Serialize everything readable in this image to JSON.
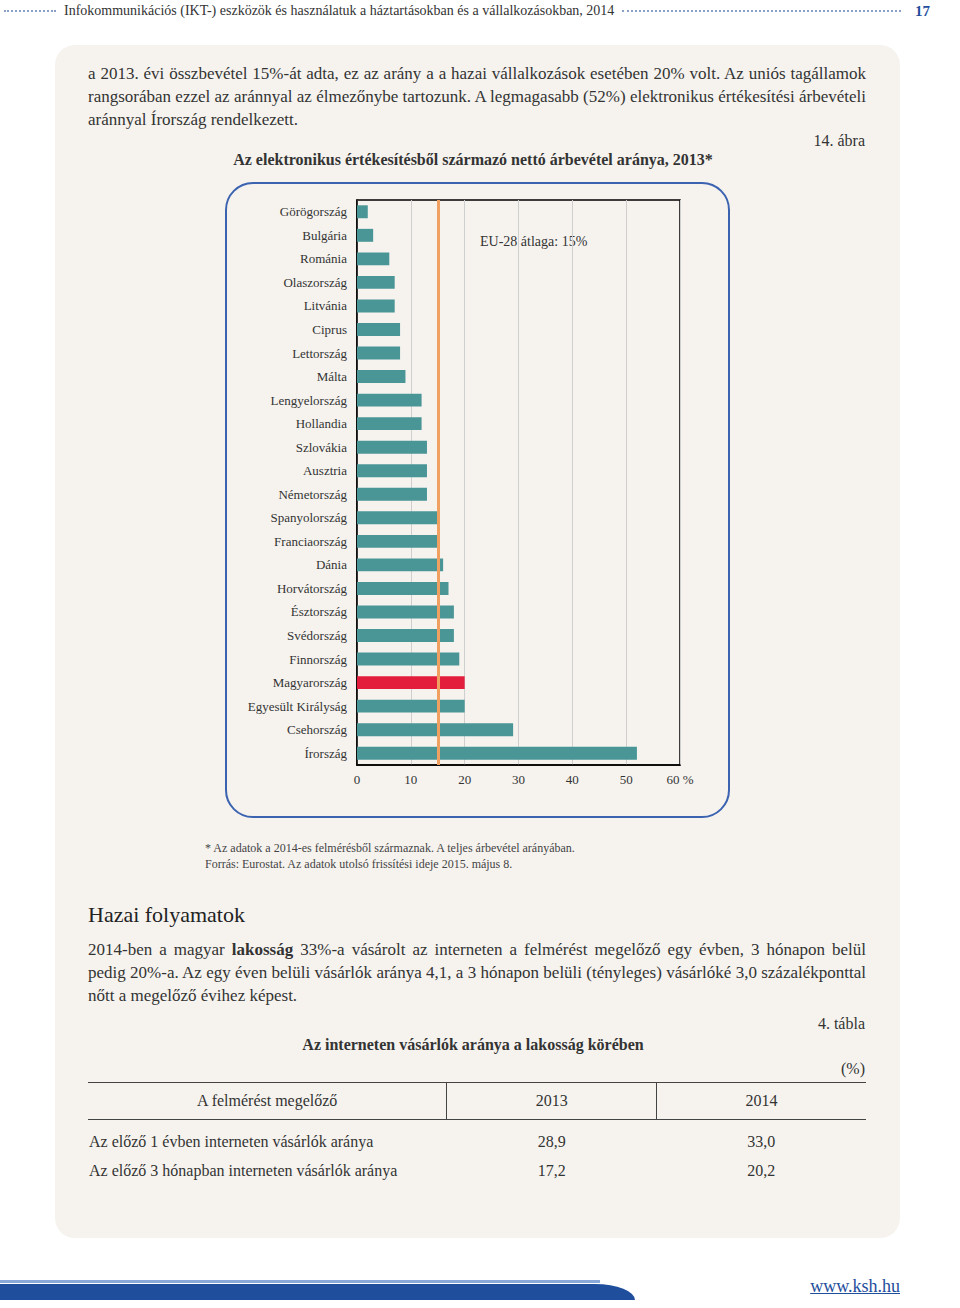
{
  "header": {
    "title": "Infokommunikációs (IKT-) eszközök és használatuk a háztartásokban és a vállalkozásokban, 2014",
    "page": "17"
  },
  "intro": "a 2013. évi összbevétel 15%-át adta, ez az arány a a hazai vállalkozások esetében 20% volt. Az uniós tagállamok rangsorában ezzel az aránnyal az élmezőnybe tartozunk. A legmagasabb (52%) elektronikus értékesítési árbevételi aránnyal Írország rendelkezett.",
  "figure": {
    "label": "14. ábra",
    "notes": [
      "* Az adatok a 2014-es felmérésből származnak. A teljes árbevétel arányában.",
      "Forrás: Eurostat. Az adatok utolsó frissítési ideje 2015. május 8."
    ]
  },
  "chart_data": {
    "type": "bar",
    "title": "Az elektronikus értékesítésből származó nettó árbevétel aránya, 2013*",
    "orientation": "horizontal",
    "categories": [
      "Görögország",
      "Bulgária",
      "Románia",
      "Olaszország",
      "Litvánia",
      "Ciprus",
      "Lettország",
      "Málta",
      "Lengyelország",
      "Hollandia",
      "Szlovákia",
      "Ausztria",
      "Németország",
      "Spanyolország",
      "Franciaország",
      "Dánia",
      "Horvátország",
      "Észtország",
      "Svédország",
      "Finnország",
      "Magyarország",
      "Egyesült Királyság",
      "Csehország",
      "Írország"
    ],
    "values": [
      2,
      3,
      6,
      7,
      7,
      8,
      8,
      9,
      12,
      12,
      13,
      13,
      13,
      15,
      15,
      16,
      17,
      18,
      18,
      19,
      20,
      20,
      29,
      52
    ],
    "colors": [
      "#4a9697",
      "#4a9697",
      "#4a9697",
      "#4a9697",
      "#4a9697",
      "#4a9697",
      "#4a9697",
      "#4a9697",
      "#4a9697",
      "#4a9697",
      "#4a9697",
      "#4a9697",
      "#4a9697",
      "#4a9697",
      "#4a9697",
      "#4a9697",
      "#4a9697",
      "#4a9697",
      "#4a9697",
      "#4a9697",
      "#e31e3c",
      "#4a9697",
      "#4a9697",
      "#4a9697"
    ],
    "xlim": [
      0,
      60
    ],
    "xticks": [
      0,
      10,
      20,
      30,
      40,
      50,
      {
        "value": 60,
        "label": "60 %"
      }
    ],
    "grid": true,
    "reference_line": {
      "value": 15,
      "label": "EU-28 átlaga: 15%",
      "color": "#f0a060"
    }
  },
  "section": {
    "heading": "Hazai folyamatok",
    "paragraph": [
      {
        "text": "2014-ben a magyar ",
        "bold": false
      },
      {
        "text": "lakosság",
        "bold": true
      },
      {
        "text": " 33%-a vásárolt az interneten a felmérést megelőző egy évben, 3 hónapon belül pedig 20%-a. Az egy éven belüli vásárlók aránya 4,1, a 3 hónapon belüli (tényleges) vásárlóké 3,0 százalékponttal nőtt a megelőző évihez képest.",
        "bold": false
      }
    ]
  },
  "table": {
    "label": "4. tábla",
    "title": "Az interneten vásárlók aránya a lakosság körében",
    "unit": "(%)",
    "header": [
      "A felmérést megelőző",
      "2013",
      "2014"
    ],
    "rows": [
      [
        "Az előző 1 évben interneten vásárlók aránya",
        "28,9",
        "33,0"
      ],
      [
        "Az előző 3 hónapban interneten vásárlók aránya",
        "17,2",
        "20,2"
      ]
    ]
  },
  "footer": {
    "url": "www.ksh.hu"
  }
}
